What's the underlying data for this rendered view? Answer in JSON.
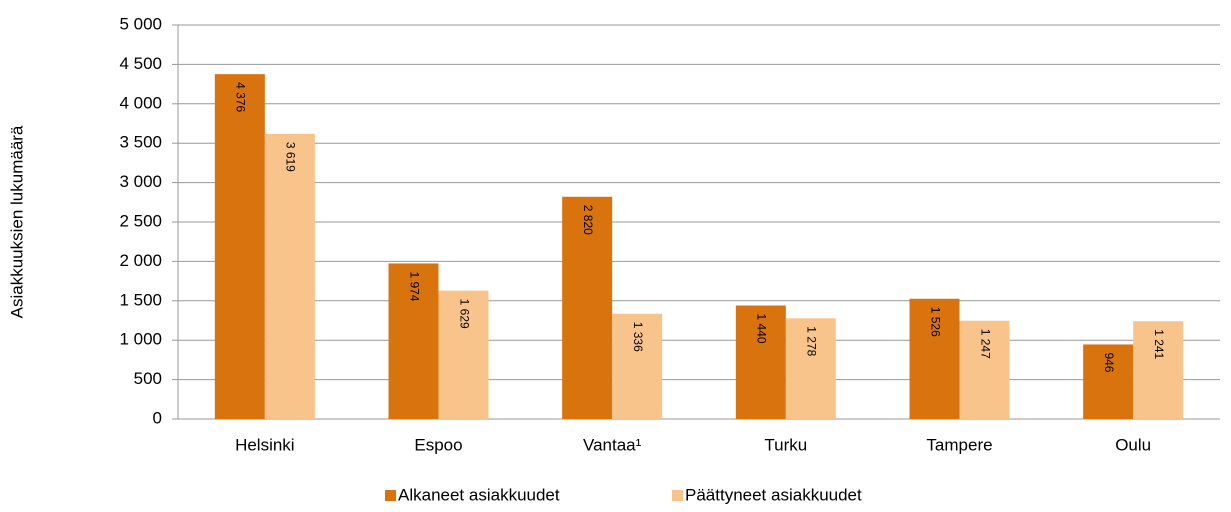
{
  "chart_data": {
    "type": "bar",
    "y_label": "Asiakkuuksien lukumäärä",
    "categories": [
      "Helsinki",
      "Espoo",
      "Vantaa¹",
      "Turku",
      "Tampere",
      "Oulu"
    ],
    "series": [
      {
        "name": "Alkaneet asiakkuudet",
        "color": "#d9730d",
        "values": [
          4376,
          1974,
          2820,
          1440,
          1526,
          946
        ],
        "value_labels": [
          "4 376",
          "1 974",
          "2 820",
          "1 440",
          "1 526",
          "946"
        ]
      },
      {
        "name": "Päättyneet asiakkuudet",
        "color": "#f9c48b",
        "values": [
          3619,
          1629,
          1336,
          1278,
          1247,
          1241
        ],
        "value_labels": [
          "3 619",
          "1 629",
          "1 336",
          "1 278",
          "1 247",
          "1 241"
        ]
      }
    ],
    "ylim": [
      0,
      5000
    ],
    "yticks": [
      0,
      500,
      {
        "value": 1000,
        "label": "1 000"
      },
      {
        "value": 1500,
        "label": "1 500"
      },
      {
        "value": 2000,
        "label": "2 000"
      },
      {
        "value": 2500,
        "label": "2 500"
      },
      {
        "value": 3000,
        "label": "3 000"
      },
      {
        "value": 3500,
        "label": "3 500"
      },
      {
        "value": 4000,
        "label": "4 000"
      },
      {
        "value": 4500,
        "label": "4 500"
      },
      {
        "value": 5000,
        "label": "5 000"
      }
    ],
    "grid": true,
    "legend": "bottom"
  }
}
